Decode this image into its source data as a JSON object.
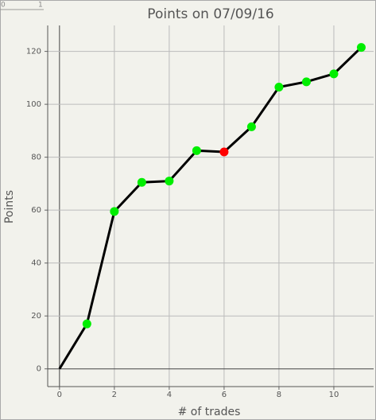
{
  "ruler": {
    "labels": [
      "0",
      "1"
    ]
  },
  "chart_data": {
    "type": "line",
    "title": "Points on 07/09/16",
    "x_label": "# of trades",
    "y_label": "Points",
    "x": [
      0,
      1,
      2,
      3,
      4,
      5,
      6,
      7,
      8,
      9,
      10,
      11
    ],
    "series": [
      {
        "name": "Points",
        "color": "#000000",
        "values": [
          0,
          17,
          59.5,
          70.5,
          71,
          82.5,
          82,
          91.5,
          106.5,
          108.5,
          111.5,
          121.5
        ],
        "marker_colors": [
          null,
          "#00ee00",
          "#00ee00",
          "#00ee00",
          "#00ee00",
          "#00ee00",
          "#ff0000",
          "#00ee00",
          "#00ee00",
          "#00ee00",
          "#00ee00",
          "#00ee00"
        ]
      }
    ],
    "xlim": [
      -0.43,
      11.45
    ],
    "ylim": [
      -6.7,
      129.8
    ],
    "xticks": [
      0,
      2,
      4,
      6,
      8,
      10
    ],
    "yticks": [
      0,
      20,
      40,
      60,
      80,
      100,
      120
    ],
    "grid": true
  }
}
